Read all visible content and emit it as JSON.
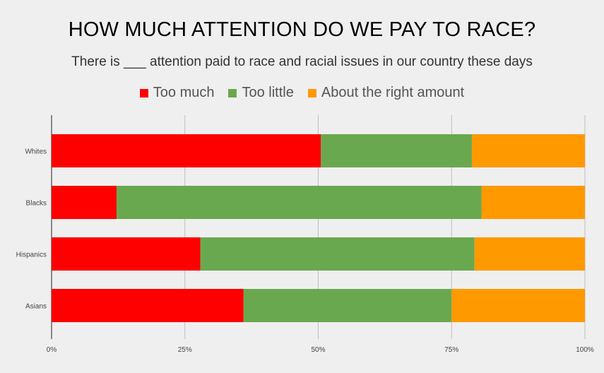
{
  "chart_data": {
    "type": "bar",
    "orientation": "horizontal",
    "stacked": "percent",
    "title": "HOW MUCH ATTENTION DO WE PAY TO RACE?",
    "subtitle": "There is ___ attention paid to race and racial issues in our country these days",
    "categories": [
      "Whites",
      "Blacks",
      "Hispanics",
      "Asians"
    ],
    "series": [
      {
        "name": "Too much",
        "color": "#ff0000",
        "values": [
          50.5,
          12.2,
          27.9,
          36.0
        ]
      },
      {
        "name": "Too little",
        "color": "#6aa84f",
        "values": [
          28.3,
          68.4,
          51.4,
          39.0
        ]
      },
      {
        "name": "About the right amount",
        "color": "#ff9900",
        "values": [
          21.2,
          19.4,
          20.7,
          25.0
        ]
      }
    ],
    "x_ticks": [
      "0%",
      "25%",
      "50%",
      "75%",
      "100%"
    ],
    "xlim": [
      0,
      100
    ],
    "grid": true,
    "legend_position": "top"
  }
}
